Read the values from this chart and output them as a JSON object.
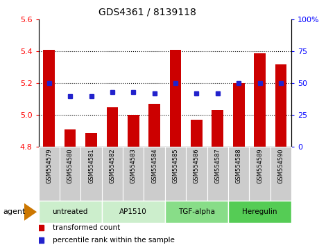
{
  "title": "GDS4361 / 8139118",
  "samples": [
    "GSM554579",
    "GSM554580",
    "GSM554581",
    "GSM554582",
    "GSM554583",
    "GSM554584",
    "GSM554585",
    "GSM554586",
    "GSM554587",
    "GSM554588",
    "GSM554589",
    "GSM554590"
  ],
  "bar_values": [
    5.41,
    4.91,
    4.89,
    5.05,
    5.0,
    5.07,
    5.41,
    4.97,
    5.03,
    5.2,
    5.39,
    5.32
  ],
  "dot_percentile": [
    50,
    40,
    40,
    43,
    43,
    42,
    50,
    42,
    42,
    50,
    50,
    50
  ],
  "ylim_left": [
    4.8,
    5.6
  ],
  "ylim_right": [
    0,
    100
  ],
  "yticks_left": [
    4.8,
    5.0,
    5.2,
    5.4,
    5.6
  ],
  "yticks_right": [
    0,
    25,
    50,
    75,
    100
  ],
  "bar_color": "#cc0000",
  "dot_color": "#2222cc",
  "groups": [
    {
      "label": "untreated",
      "start": 0,
      "end": 3,
      "color": "#cceecc"
    },
    {
      "label": "AP1510",
      "start": 3,
      "end": 6,
      "color": "#cceecc"
    },
    {
      "label": "TGF-alpha",
      "start": 6,
      "end": 9,
      "color": "#88dd88"
    },
    {
      "label": "Heregulin",
      "start": 9,
      "end": 12,
      "color": "#55cc55"
    }
  ],
  "sample_bg": "#cccccc",
  "legend_bar_label": "transformed count",
  "legend_dot_label": "percentile rank within the sample",
  "agent_label": "agent",
  "bar_bottom": 4.8,
  "hgrid_values": [
    5.0,
    5.2,
    5.4
  ]
}
